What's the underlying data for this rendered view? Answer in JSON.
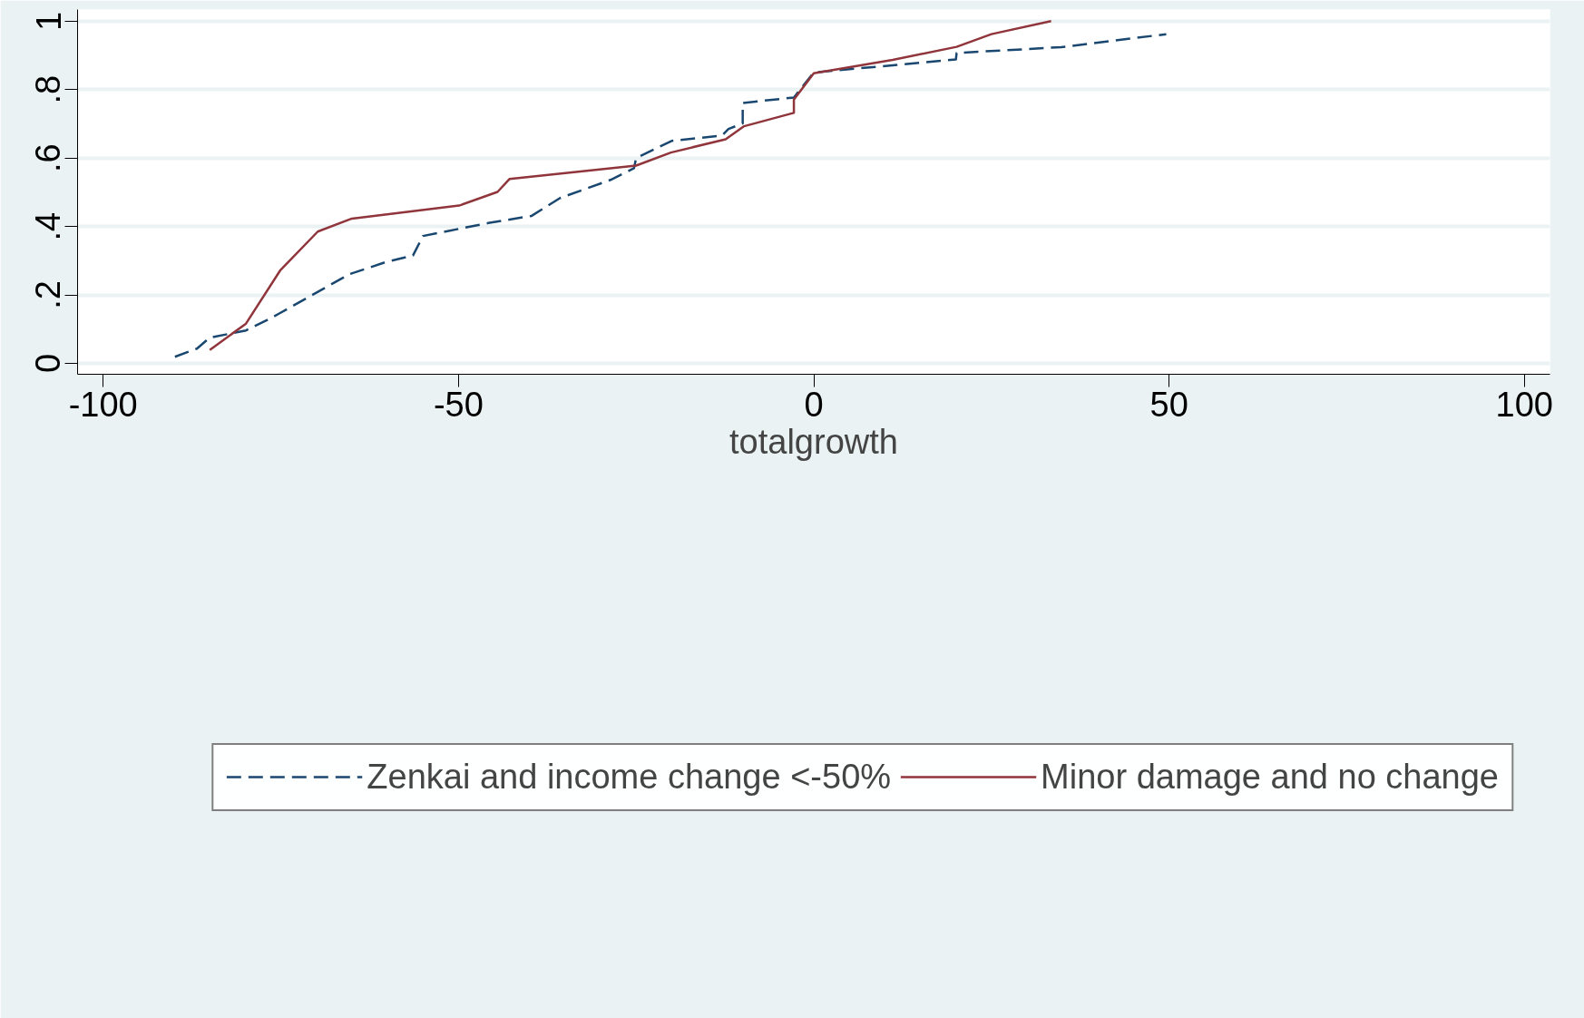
{
  "chart_data": {
    "type": "line",
    "xlabel": "totalgrowth",
    "xlim": [
      -103.6,
      103.6
    ],
    "ylim": [
      -0.032,
      1.034
    ],
    "xticks": [
      -100,
      -50,
      0,
      50,
      100
    ],
    "yticks": [
      {
        "value": 0,
        "label": "0"
      },
      {
        "value": 0.2,
        "label": ".2"
      },
      {
        "value": 0.4,
        "label": ".4"
      },
      {
        "value": 0.6,
        "label": ".6"
      },
      {
        "value": 0.8,
        "label": ".8"
      },
      {
        "value": 1,
        "label": "1"
      }
    ],
    "grid": "y",
    "legend": "bottom",
    "series": [
      {
        "name": "Zenkai and income change <-50%",
        "color": "#1a476f",
        "line_style": "dashed",
        "x": [
          -89.9,
          -86.8,
          -85.0,
          -79.9,
          -76.7,
          -75.1,
          -65.4,
          -60.2,
          -56.4,
          -55.0,
          -45.8,
          -39.7,
          -35.7,
          -28.6,
          -25.3,
          -25.0,
          -20.0,
          -12.9,
          -12.0,
          -10.0,
          -10.0,
          -2.8,
          0,
          20.0,
          20.1,
          34.8,
          49.6
        ],
        "values": [
          0.019,
          0.043,
          0.075,
          0.096,
          0.129,
          0.147,
          0.26,
          0.296,
          0.315,
          0.372,
          0.41,
          0.431,
          0.483,
          0.536,
          0.57,
          0.6,
          0.65,
          0.666,
          0.685,
          0.701,
          0.761,
          0.777,
          0.85,
          0.888,
          0.907,
          0.924,
          0.962
        ]
      },
      {
        "name": "Minor damage and no change",
        "color": "#90353b",
        "line_style": "solid",
        "x": [
          -85.0,
          -79.9,
          -75.1,
          -69.8,
          -65.0,
          -49.9,
          -44.5,
          -42.8,
          -25.0,
          -20.1,
          -12.4,
          -9.8,
          -2.8,
          -2.8,
          0,
          11.1,
          20.1,
          25.0,
          33.4
        ],
        "values": [
          0.039,
          0.116,
          0.271,
          0.385,
          0.423,
          0.461,
          0.501,
          0.539,
          0.578,
          0.616,
          0.655,
          0.693,
          0.732,
          0.771,
          0.848,
          0.887,
          0.925,
          0.962,
          1.0
        ]
      }
    ]
  }
}
